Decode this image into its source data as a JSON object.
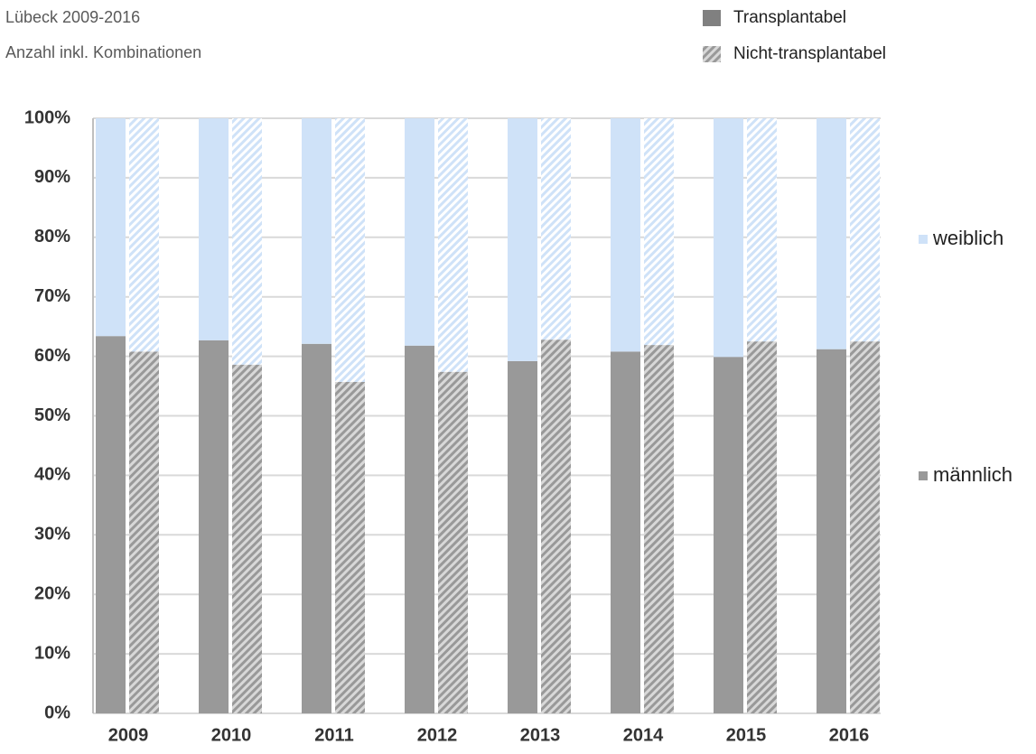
{
  "chart_data": {
    "type": "bar",
    "stacked": true,
    "title": "Lübeck 2009-2016",
    "subtitle": "Anzahl inkl. Kombinationen",
    "categories": [
      "2009",
      "2010",
      "2011",
      "2012",
      "2013",
      "2014",
      "2015",
      "2016"
    ],
    "series": [
      {
        "name": "männlich",
        "color": "#999999"
      },
      {
        "name": "weiblich",
        "color": "#cfe2f8"
      }
    ],
    "groups": [
      {
        "name": "Transplantabel",
        "hatched": false,
        "values": [
          [
            63.4,
            62.7,
            62.1,
            61.8,
            59.2,
            60.8,
            59.9,
            61.2
          ],
          [
            36.6,
            37.3,
            37.9,
            38.2,
            40.8,
            39.2,
            40.1,
            38.8
          ]
        ]
      },
      {
        "name": "Nicht-transplantabel",
        "hatched": true,
        "values": [
          [
            60.8,
            58.6,
            55.7,
            57.4,
            62.8,
            61.9,
            62.5,
            62.5
          ],
          [
            39.2,
            41.4,
            44.3,
            42.6,
            37.2,
            38.1,
            37.5,
            37.5
          ]
        ]
      }
    ],
    "ylim": [
      0,
      100
    ],
    "yticks": [
      {
        "value": 0,
        "label": "0%"
      },
      {
        "value": 10,
        "label": "10%"
      },
      {
        "value": 20,
        "label": "20%"
      },
      {
        "value": 30,
        "label": "30%"
      },
      {
        "value": 40,
        "label": "40%"
      },
      {
        "value": 50,
        "label": "50%"
      },
      {
        "value": 60,
        "label": "60%"
      },
      {
        "value": 70,
        "label": "70%"
      },
      {
        "value": 80,
        "label": "80%"
      },
      {
        "value": 90,
        "label": "90%"
      },
      {
        "value": 100,
        "label": "100%"
      }
    ],
    "grid": true
  }
}
